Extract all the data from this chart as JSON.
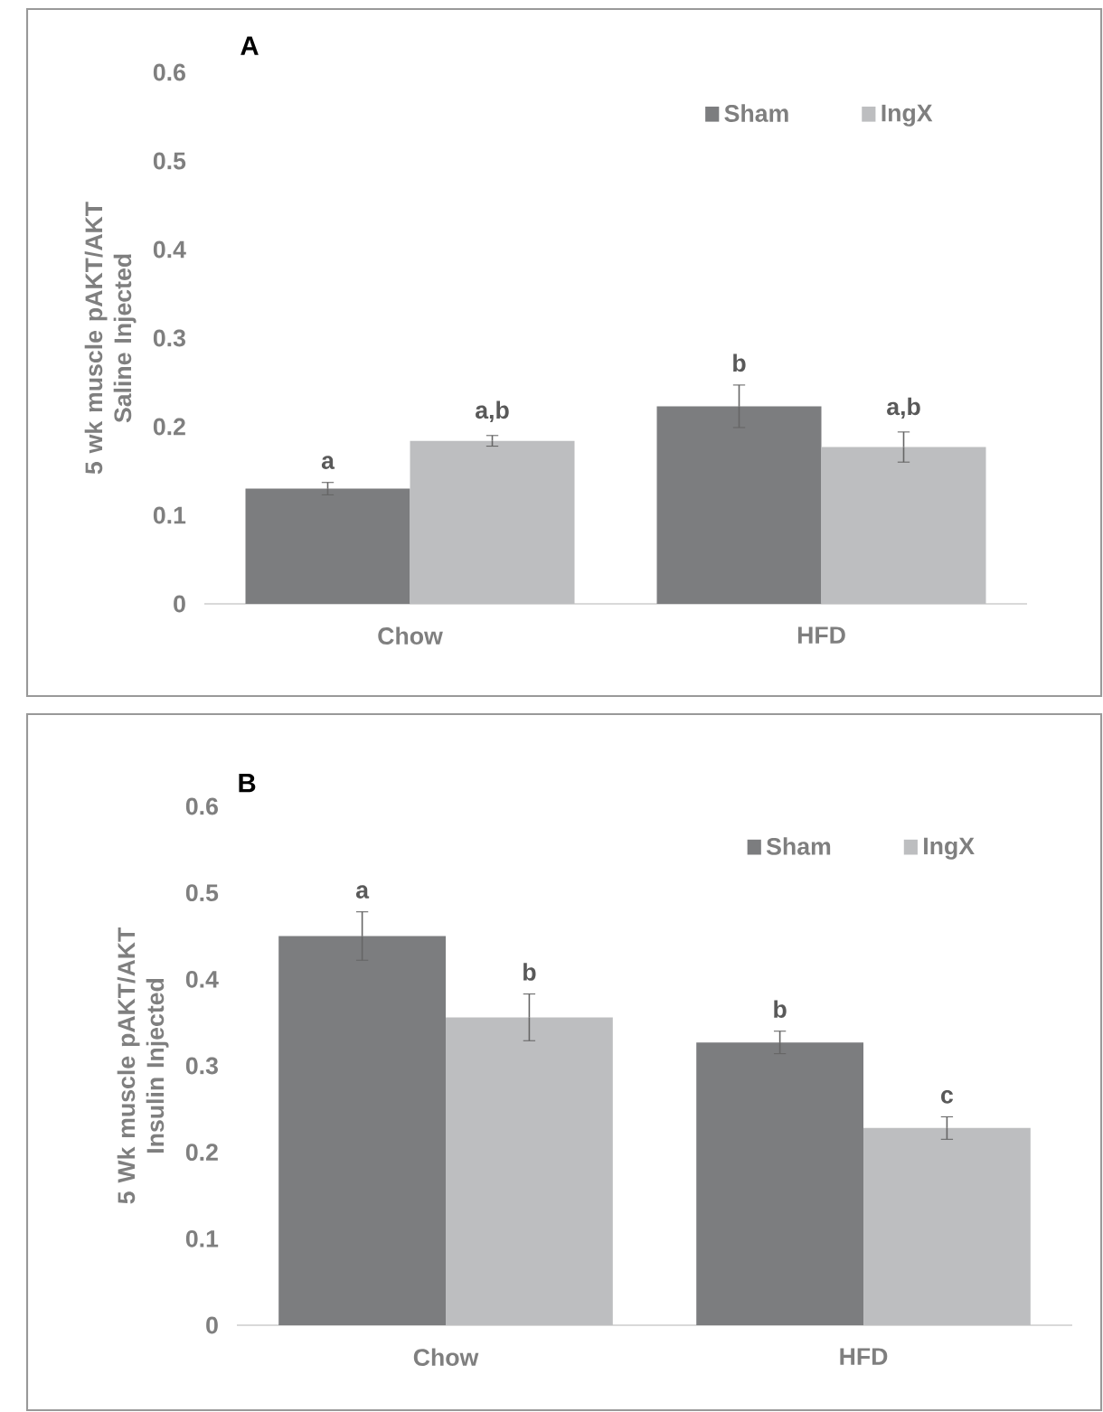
{
  "chart_data": [
    {
      "type": "bar",
      "title": "A",
      "ylabel": "5 wk muscle  pAKT/AKT Saline Injected",
      "categories": [
        "Chow",
        "HFD"
      ],
      "series": [
        {
          "name": "Sham",
          "color": "#7c7d7f",
          "values": [
            0.13,
            0.223
          ],
          "errors": [
            0.007,
            0.024
          ]
        },
        {
          "name": "IngX",
          "color": "#bdbec0",
          "values": [
            0.184,
            0.177
          ],
          "errors": [
            0.006,
            0.017
          ]
        }
      ],
      "ylim": [
        0,
        0.6
      ],
      "yticks": [
        0,
        0.1,
        0.2,
        0.3,
        0.4,
        0.5,
        0.6
      ],
      "legend": "top",
      "grid": false,
      "annotations": [
        "a",
        "a,b",
        "b",
        "a,b"
      ]
    },
    {
      "type": "bar",
      "title": "B",
      "ylabel": "5 Wk muscle pAKT/AKT Insulin Injected",
      "categories": [
        "Chow",
        "HFD"
      ],
      "series": [
        {
          "name": "Sham",
          "color": "#7c7d7f",
          "values": [
            0.45,
            0.327
          ],
          "errors": [
            0.028,
            0.013
          ]
        },
        {
          "name": "IngX",
          "color": "#bdbec0",
          "values": [
            0.356,
            0.228
          ],
          "errors": [
            0.027,
            0.013
          ]
        }
      ],
      "ylim": [
        0,
        0.6
      ],
      "yticks": [
        0,
        0.1,
        0.2,
        0.3,
        0.4,
        0.5,
        0.6
      ],
      "legend": "top",
      "grid": false,
      "annotations": [
        "a",
        "b",
        "b",
        "c"
      ]
    }
  ]
}
